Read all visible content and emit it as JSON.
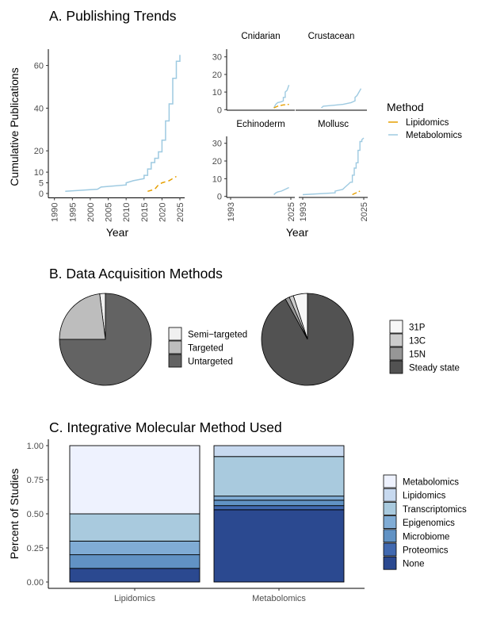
{
  "figure": {
    "panel_a_title": "A. Publishing Trends",
    "panel_b_title": "B. Data Acquisition Methods",
    "panel_c_title": "C. Integrative Molecular Method Used"
  },
  "chart_data": [
    {
      "id": "a_overall",
      "type": "line",
      "title": "A. Publishing Trends",
      "xlabel": "Year",
      "ylabel": "Cumulative Publications",
      "xlim": [
        1990,
        2025
      ],
      "ylim": [
        0,
        65
      ],
      "xticks": [
        "1990",
        "1995",
        "2000",
        "2005",
        "2010",
        "2015",
        "2020",
        "2025"
      ],
      "yticks": [
        "0",
        "5",
        "10",
        "20",
        "40",
        "60"
      ],
      "series": [
        {
          "name": "Metabolomics",
          "color": "#9ecae1",
          "dash": "solid",
          "x": [
            1993,
            2002,
            2003,
            2010,
            2010,
            2012,
            2015,
            2015,
            2016,
            2016,
            2017,
            2017,
            2018,
            2018,
            2019,
            2019,
            2020,
            2020,
            2021,
            2021,
            2022,
            2022,
            2023,
            2023,
            2024,
            2024,
            2025,
            2025
          ],
          "y": [
            1,
            2,
            3,
            4,
            5,
            6,
            7,
            8.5,
            8.5,
            11.5,
            11.5,
            14.5,
            14.5,
            16.5,
            16.5,
            19.5,
            19.5,
            25,
            25,
            34,
            34,
            42,
            42,
            54,
            54,
            62,
            62,
            65
          ]
        },
        {
          "name": "Lipidomics",
          "color": "#e69f00",
          "dash": "dashed",
          "x": [
            2016,
            2017,
            2018,
            2019,
            2020,
            2021,
            2022,
            2023,
            2024
          ],
          "y": [
            1,
            1.5,
            2,
            4,
            5,
            5.5,
            6,
            7,
            8
          ]
        }
      ]
    },
    {
      "id": "a_facets",
      "type": "line",
      "xlabel": "Year",
      "ylim": [
        0,
        35
      ],
      "yticks": [
        "0",
        "10",
        "20",
        "30"
      ],
      "xticks": [
        "1993",
        "2025"
      ],
      "xlim": [
        1993,
        2025
      ],
      "facets": [
        {
          "name": "Cnidarian",
          "series": [
            {
              "name": "Metabolomics",
              "x": [
                2016,
                2017,
                2018,
                2020,
                2021,
                2021,
                2022,
                2022,
                2023,
                2024
              ],
              "y": [
                1,
                3,
                4,
                4.5,
                5,
                7,
                7,
                10,
                11,
                14
              ]
            },
            {
              "name": "Lipidomics",
              "x": [
                2016,
                2018,
                2020,
                2021,
                2022,
                2024
              ],
              "y": [
                1,
                2,
                2.5,
                2.7,
                2.8,
                3
              ]
            }
          ]
        },
        {
          "name": "Crustacean",
          "series": [
            {
              "name": "Metabolomics",
              "x": [
                2004,
                2005,
                2010,
                2015,
                2019,
                2021,
                2021,
                2022,
                2023,
                2024
              ],
              "y": [
                1,
                2,
                2.5,
                3,
                4,
                5,
                7,
                8,
                10,
                12
              ]
            }
          ]
        },
        {
          "name": "Echinoderm",
          "series": [
            {
              "name": "Metabolomics",
              "x": [
                2016,
                2017,
                2018,
                2020,
                2022,
                2024
              ],
              "y": [
                1,
                2,
                2.5,
                3,
                4,
                5
              ]
            }
          ]
        },
        {
          "name": "Mollusc",
          "series": [
            {
              "name": "Metabolomics",
              "x": [
                1993,
                2010,
                2010,
                2014,
                2015,
                2017,
                2018,
                2019,
                2019,
                2020,
                2020,
                2021,
                2021,
                2022,
                2022,
                2023,
                2023,
                2024,
                2024,
                2025
              ],
              "y": [
                1,
                2,
                3,
                4,
                5,
                7,
                8,
                8,
                12,
                12,
                16,
                16,
                19,
                19,
                26,
                26,
                31,
                31,
                32,
                33
              ]
            },
            {
              "name": "Lipidomics",
              "x": [
                2019,
                2020,
                2021,
                2022,
                2023
              ],
              "y": [
                1,
                1.5,
                2,
                2.5,
                3
              ]
            }
          ]
        }
      ]
    },
    {
      "id": "b_left",
      "type": "pie",
      "categories": [
        "Semi−targeted",
        "Targeted",
        "Untargeted"
      ],
      "values": [
        2,
        23,
        75
      ],
      "colors": [
        "#f0f0f0",
        "#bdbdbd",
        "#636363"
      ]
    },
    {
      "id": "b_right",
      "type": "pie",
      "categories": [
        "31P",
        "13C",
        "15N",
        "Steady state"
      ],
      "values": [
        5,
        1.5,
        1.5,
        92
      ],
      "colors": [
        "#f7f7f7",
        "#cccccc",
        "#969696",
        "#525252"
      ]
    },
    {
      "id": "c_bars",
      "type": "bar",
      "stacked": true,
      "ylabel": "Percent of Studies",
      "xlabel": "",
      "ylim": [
        0,
        1
      ],
      "yticks": [
        "0.00",
        "0.25",
        "0.50",
        "0.75",
        "1.00"
      ],
      "categories": [
        "Lipidomics",
        "Metabolomics"
      ],
      "series": [
        {
          "name": "None",
          "color": "#2b4990",
          "values": [
            0.1,
            0.53
          ]
        },
        {
          "name": "Proteomics",
          "color": "#4169b0",
          "values": [
            0.0,
            0.03
          ]
        },
        {
          "name": "Microbiome",
          "color": "#6192c4",
          "values": [
            0.1,
            0.04
          ]
        },
        {
          "name": "Epigenomics",
          "color": "#80acd5",
          "values": [
            0.1,
            0.03
          ]
        },
        {
          "name": "Transcriptomics",
          "color": "#a9cade",
          "values": [
            0.2,
            0.29
          ]
        },
        {
          "name": "Lipidomics",
          "color": "#c7d9ef",
          "values": [
            0.0,
            0.08
          ]
        },
        {
          "name": "Metabolomics",
          "color": "#eef2fe",
          "values": [
            0.5,
            0.0
          ]
        }
      ]
    }
  ],
  "legends": {
    "method": {
      "title": "Method",
      "items": [
        {
          "label": "Lipidomics",
          "color": "#e69f00"
        },
        {
          "label": "Metabolomics",
          "color": "#9ecae1"
        }
      ]
    },
    "acquisition_left": {
      "items": [
        {
          "label": "Semi−targeted",
          "color": "#f0f0f0"
        },
        {
          "label": "Targeted",
          "color": "#bdbdbd"
        },
        {
          "label": "Untargeted",
          "color": "#636363"
        }
      ]
    },
    "acquisition_right": {
      "items": [
        {
          "label": "31P",
          "color": "#f7f7f7"
        },
        {
          "label": "13C",
          "color": "#cccccc"
        },
        {
          "label": "15N",
          "color": "#969696"
        },
        {
          "label": "Steady state",
          "color": "#525252"
        }
      ]
    },
    "integrative": {
      "items": [
        {
          "label": "Metabolomics",
          "color": "#eef2fe"
        },
        {
          "label": "Lipidomics",
          "color": "#c7d9ef"
        },
        {
          "label": "Transcriptomics",
          "color": "#a9cade"
        },
        {
          "label": "Epigenomics",
          "color": "#80acd5"
        },
        {
          "label": "Microbiome",
          "color": "#6192c4"
        },
        {
          "label": "Proteomics",
          "color": "#4169b0"
        },
        {
          "label": "None",
          "color": "#2b4990"
        }
      ]
    }
  }
}
